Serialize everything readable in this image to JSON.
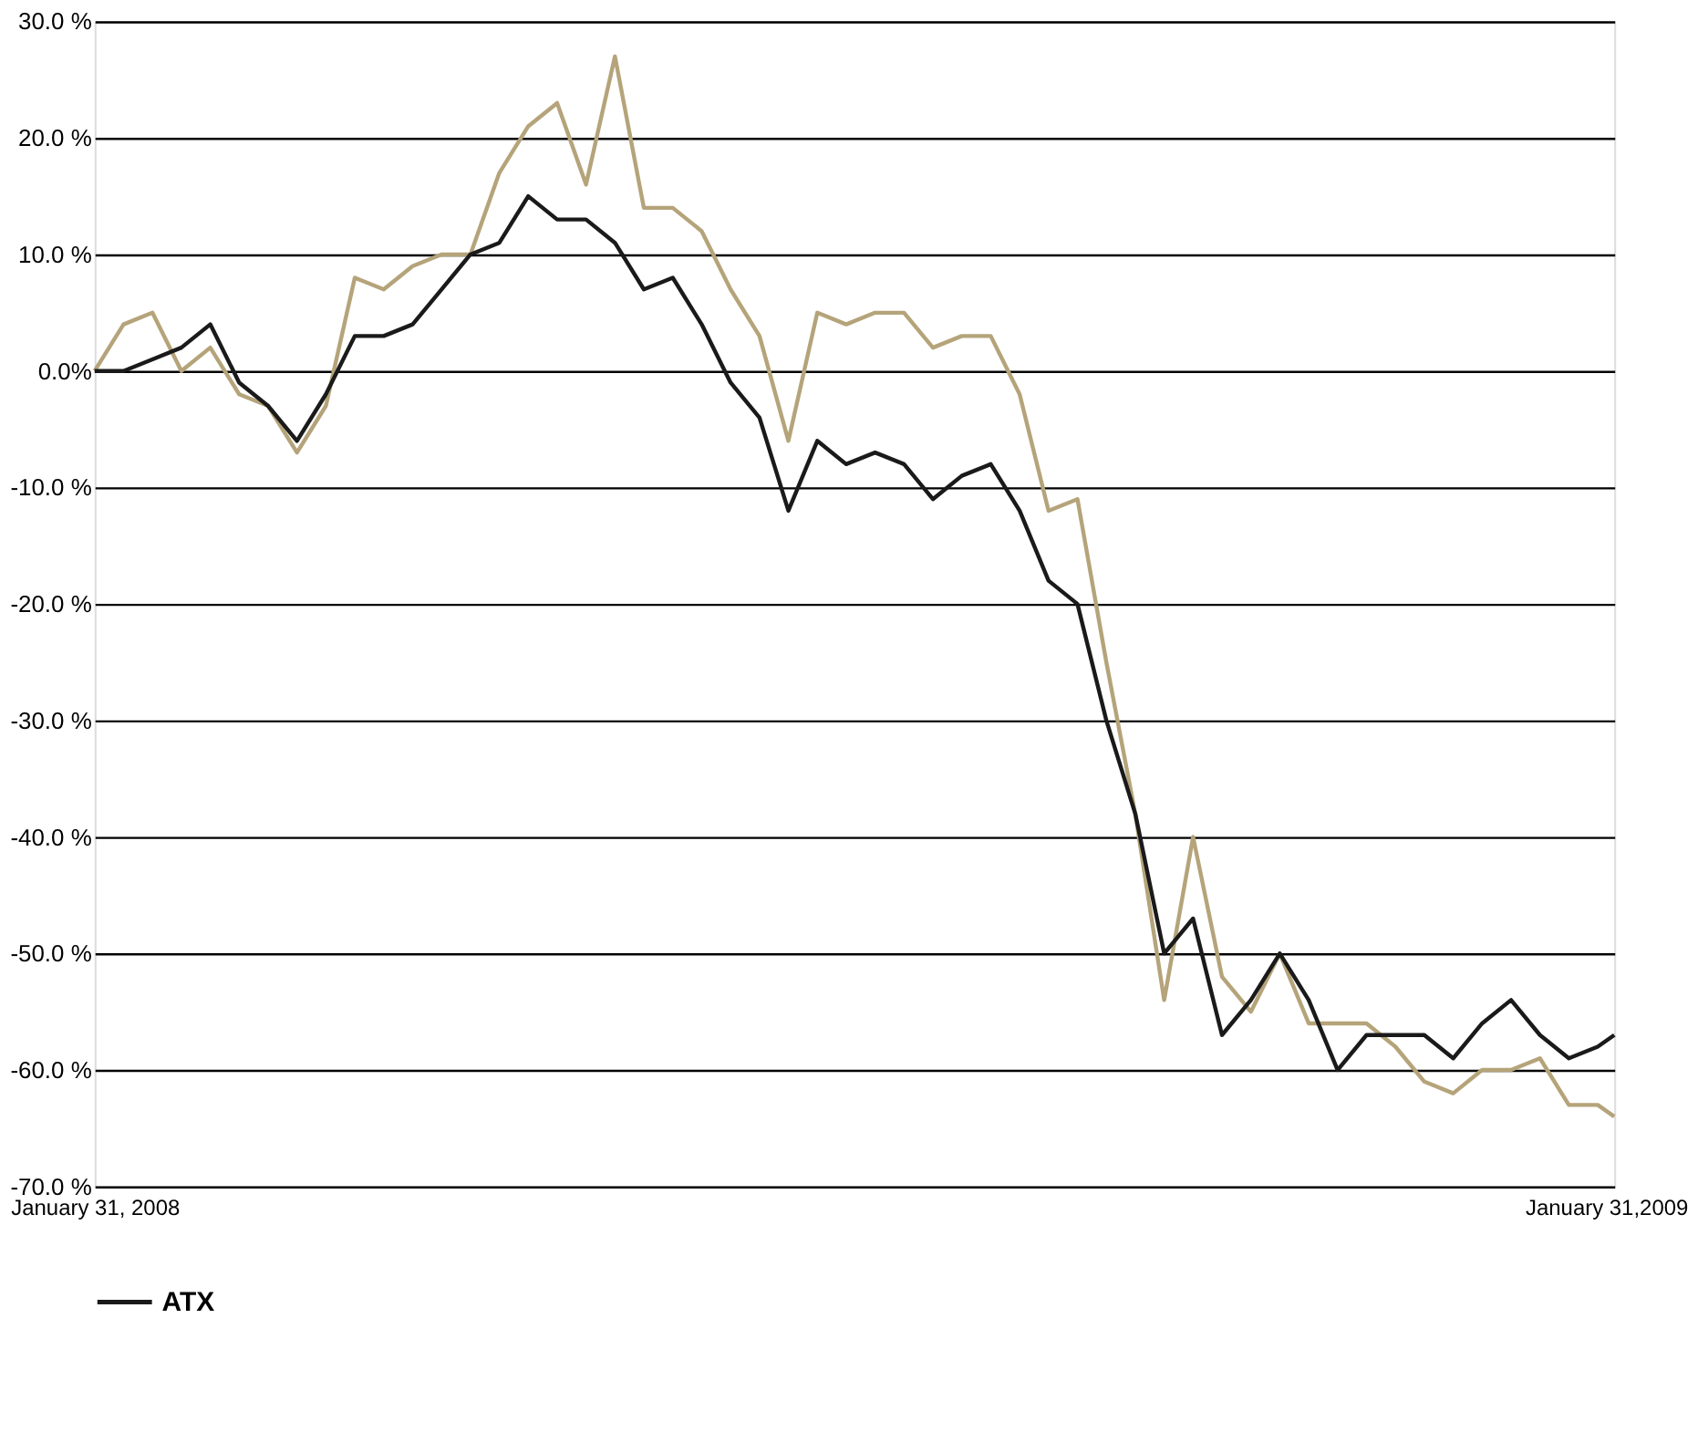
{
  "chart_data": {
    "type": "line",
    "x": [
      "2008-01-31",
      "2008-02-07",
      "2008-02-14",
      "2008-02-21",
      "2008-02-28",
      "2008-03-06",
      "2008-03-13",
      "2008-03-20",
      "2008-03-27",
      "2008-04-03",
      "2008-04-10",
      "2008-04-17",
      "2008-04-24",
      "2008-05-01",
      "2008-05-08",
      "2008-05-15",
      "2008-05-22",
      "2008-05-29",
      "2008-06-05",
      "2008-06-12",
      "2008-06-19",
      "2008-06-26",
      "2008-07-03",
      "2008-07-10",
      "2008-07-17",
      "2008-07-24",
      "2008-07-31",
      "2008-08-07",
      "2008-08-14",
      "2008-08-21",
      "2008-08-28",
      "2008-09-04",
      "2008-09-11",
      "2008-09-18",
      "2008-09-25",
      "2008-10-02",
      "2008-10-09",
      "2008-10-16",
      "2008-10-23",
      "2008-10-30",
      "2008-11-06",
      "2008-11-13",
      "2008-11-20",
      "2008-11-27",
      "2008-12-04",
      "2008-12-11",
      "2008-12-18",
      "2008-12-25",
      "2009-01-01",
      "2009-01-08",
      "2009-01-15",
      "2009-01-22",
      "2009-01-29",
      "2009-02-02"
    ],
    "series": [
      {
        "color": "#b5a47a",
        "values": [
          0,
          4,
          5,
          0,
          2,
          -2,
          -3,
          -7,
          -3,
          8,
          7,
          9,
          10,
          10,
          17,
          21,
          23,
          16,
          27,
          14,
          14,
          12,
          7,
          3,
          -6,
          5,
          4,
          5,
          5,
          2,
          3,
          3,
          -2,
          -12,
          -11,
          -25,
          -38,
          -54,
          -40,
          -52,
          -55,
          -50,
          -56,
          -56,
          -56,
          -58,
          -61,
          -62,
          -60,
          -60,
          -59,
          -63,
          -63,
          -64
        ]
      },
      {
        "name": "ATX",
        "color": "#1a1a1a",
        "values": [
          0,
          0,
          1,
          2,
          4,
          -1,
          -3,
          -6,
          -2,
          3,
          3,
          4,
          7,
          10,
          11,
          15,
          13,
          13,
          11,
          7,
          8,
          4,
          -1,
          -4,
          -12,
          -6,
          -8,
          -7,
          -8,
          -11,
          -9,
          -8,
          -12,
          -18,
          -20,
          -30,
          -38,
          -50,
          -47,
          -57,
          -54,
          -50,
          -54,
          -60,
          -57,
          -57,
          -57,
          -59,
          -56,
          -54,
          -57,
          -59,
          -58,
          -57
        ]
      }
    ],
    "xlim": [
      "2008-01-31",
      "2009-02-02"
    ],
    "xticks": [
      {
        "value": "2008-01-31",
        "label": "January 31, 2008"
      },
      {
        "value": "2009-01-31",
        "label": "January 31,2009"
      }
    ],
    "ylim": [
      -70,
      30
    ],
    "yticks": [
      {
        "value": 30,
        "label": "30.0 %"
      },
      {
        "value": 20,
        "label": "20.0 %"
      },
      {
        "value": 10,
        "label": "10.0 %"
      },
      {
        "value": 0,
        "label": "0.0%"
      },
      {
        "value": -10,
        "label": "-10.0 %"
      },
      {
        "value": -20,
        "label": "-20.0 %"
      },
      {
        "value": -30,
        "label": "-30.0 %"
      },
      {
        "value": -40,
        "label": "-40.0 %"
      },
      {
        "value": -50,
        "label": "-50.0 %"
      },
      {
        "value": -60,
        "label": "-60.0 %"
      },
      {
        "value": -70,
        "label": "-70.0 %"
      }
    ],
    "grid": "y",
    "legend": "bottom",
    "marker": "none",
    "line_style": "solid"
  }
}
